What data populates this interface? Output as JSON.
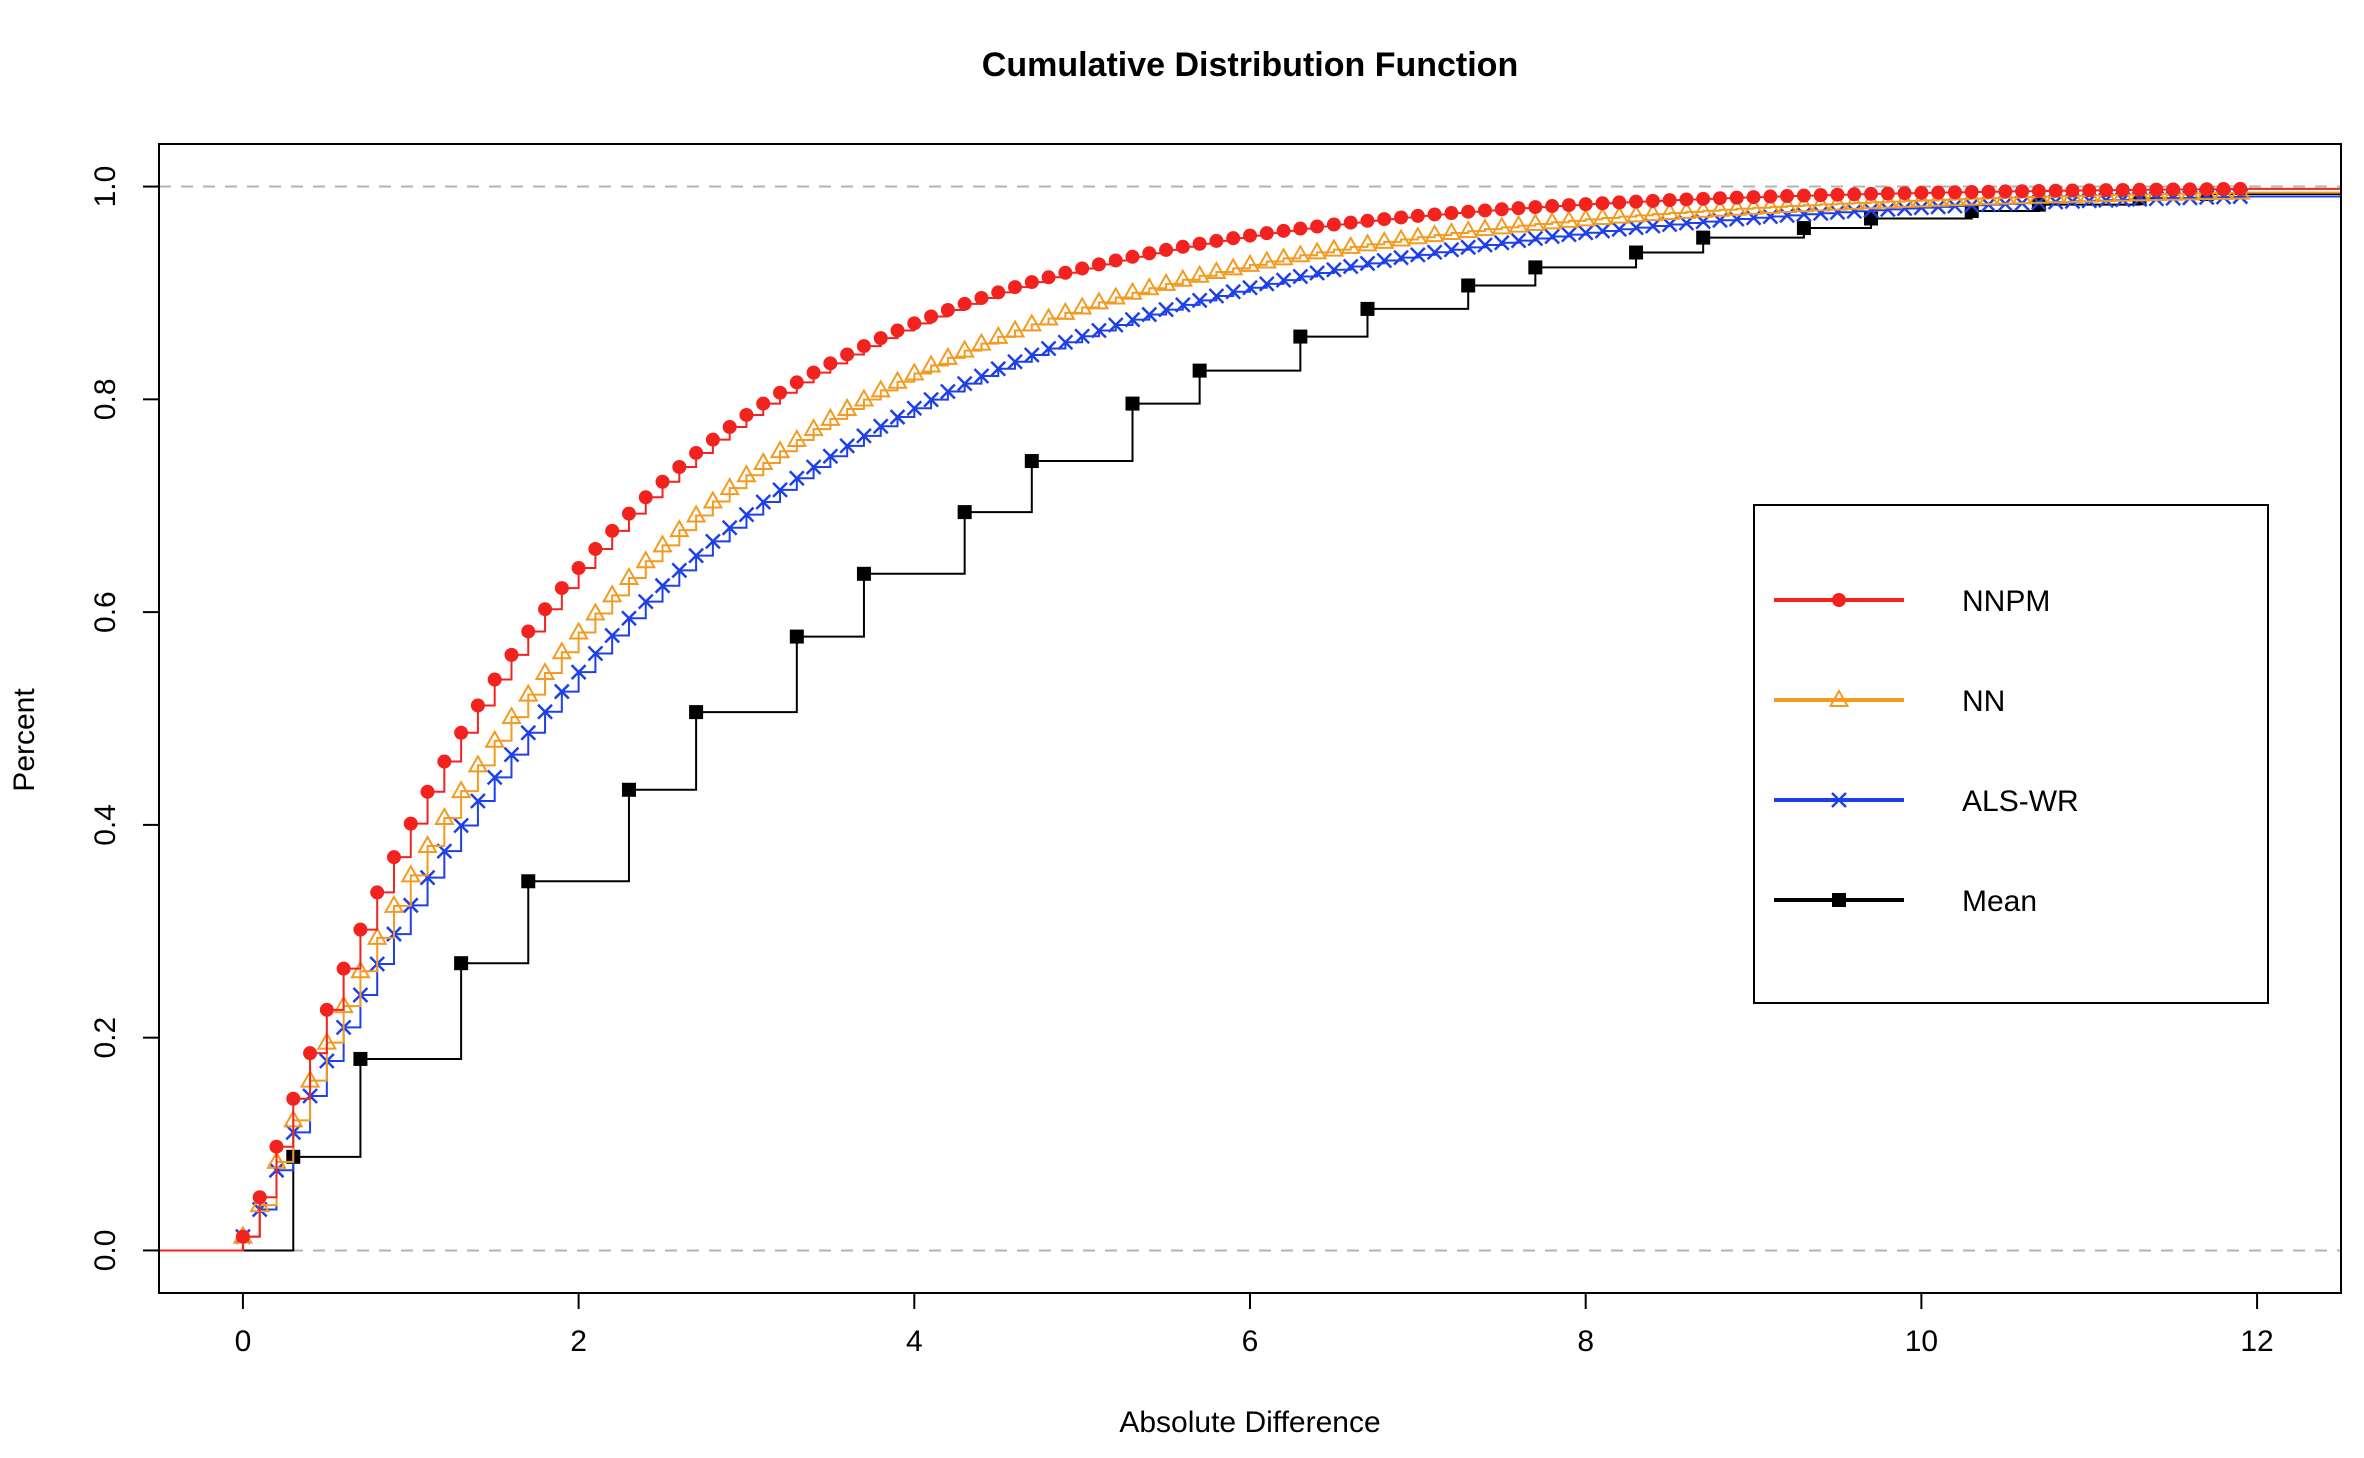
{
  "colors": {
    "nnpm": "#f2231f",
    "nn": "#f39a21",
    "alswr": "#1e40e8",
    "mean": "#000000",
    "refline": "#b3b3b3"
  },
  "chart_data": {
    "type": "line",
    "title": "Cumulative Distribution Function",
    "xlabel": "Absolute Difference",
    "ylabel": "Percent",
    "xlim": [
      -0.5,
      12.5
    ],
    "ylim": [
      -0.04,
      1.04
    ],
    "x_ticks": [
      "0",
      "2",
      "4",
      "6",
      "8",
      "10",
      "12"
    ],
    "y_ticks": [
      "0.0",
      "0.2",
      "0.4",
      "0.6",
      "0.8",
      "1.0"
    ],
    "reference_lines_y": [
      0,
      1
    ],
    "grid": false,
    "legend": {
      "position": "right",
      "entries": [
        "NNPM",
        "NN",
        "ALS-WR",
        "Mean"
      ]
    },
    "series": [
      {
        "name": "NNPM",
        "color_key": "nnpm",
        "marker": "circle",
        "step": true,
        "x_start": 0,
        "x_step": 0.1,
        "points": 120,
        "model": "1 - exp(-x/1.95)",
        "y_first": 0.013
      },
      {
        "name": "NN",
        "color_key": "nn",
        "marker": "triangle",
        "step": true,
        "x_start": 0,
        "x_step": 0.1,
        "points": 120,
        "model": "1 - exp(-x/2.3)",
        "y_first": 0.013
      },
      {
        "name": "ALS-WR",
        "color_key": "alswr",
        "marker": "x",
        "step": true,
        "x_start": 0,
        "x_step": 0.1,
        "points": 120,
        "model": "1 - exp(-x/2.55)",
        "y_first": 0.013
      },
      {
        "name": "Mean",
        "color_key": "mean",
        "marker": "square",
        "step": true,
        "x": [
          0.3,
          0.7,
          1.3,
          1.7,
          2.3,
          2.7,
          3.3,
          3.7,
          4.3,
          4.7,
          5.3,
          5.7,
          6.3,
          6.7,
          7.3,
          7.7,
          8.3,
          8.7,
          9.3,
          9.7,
          10.3,
          10.7,
          11.3,
          11.7
        ],
        "y": [
          0.088,
          0.18,
          0.27,
          0.347,
          0.433,
          0.506,
          0.577,
          0.636,
          0.694,
          0.742,
          0.796,
          0.827,
          0.859,
          0.885,
          0.907,
          0.924,
          0.938,
          0.952,
          0.961,
          0.97,
          0.977,
          0.983,
          0.989,
          0.993
        ]
      }
    ]
  }
}
